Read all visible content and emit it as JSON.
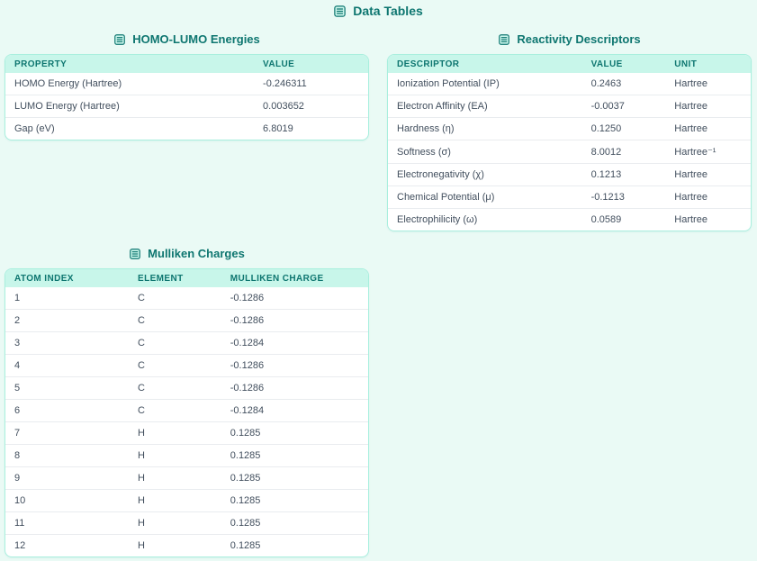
{
  "page": {
    "title": "Data Tables"
  },
  "colors": {
    "accent_teal": "#0e7670",
    "header_row_bg": "#c8f6ea",
    "page_bg": "#eafaf5",
    "card_border": "#a9efde",
    "body_text": "#424f5e"
  },
  "icons": {
    "section_icon": "table-rows-icon"
  },
  "tables": {
    "homo_lumo": {
      "title": "HOMO-LUMO Energies",
      "columns": [
        "Property",
        "Value"
      ],
      "rows": [
        [
          "HOMO Energy (Hartree)",
          "-0.246311"
        ],
        [
          "LUMO Energy (Hartree)",
          "0.003652"
        ],
        [
          "Gap (eV)",
          "6.8019"
        ]
      ]
    },
    "reactivity": {
      "title": "Reactivity Descriptors",
      "columns": [
        "Descriptor",
        "Value",
        "Unit"
      ],
      "rows": [
        [
          "Ionization Potential (IP)",
          "0.2463",
          "Hartree"
        ],
        [
          "Electron Affinity (EA)",
          "-0.0037",
          "Hartree"
        ],
        [
          "Hardness (η)",
          "0.1250",
          "Hartree"
        ],
        [
          "Softness (σ)",
          "8.0012",
          "Hartree⁻¹"
        ],
        [
          "Electronegativity (χ)",
          "0.1213",
          "Hartree"
        ],
        [
          "Chemical Potential (μ)",
          "-0.1213",
          "Hartree"
        ],
        [
          "Electrophilicity (ω)",
          "0.0589",
          "Hartree"
        ]
      ]
    },
    "mulliken": {
      "title": "Mulliken Charges",
      "columns": [
        "Atom Index",
        "Element",
        "Mulliken Charge"
      ],
      "rows": [
        [
          "1",
          "C",
          "-0.1286"
        ],
        [
          "2",
          "C",
          "-0.1286"
        ],
        [
          "3",
          "C",
          "-0.1284"
        ],
        [
          "4",
          "C",
          "-0.1286"
        ],
        [
          "5",
          "C",
          "-0.1286"
        ],
        [
          "6",
          "C",
          "-0.1284"
        ],
        [
          "7",
          "H",
          "0.1285"
        ],
        [
          "8",
          "H",
          "0.1285"
        ],
        [
          "9",
          "H",
          "0.1285"
        ],
        [
          "10",
          "H",
          "0.1285"
        ],
        [
          "11",
          "H",
          "0.1285"
        ],
        [
          "12",
          "H",
          "0.1285"
        ]
      ]
    }
  }
}
